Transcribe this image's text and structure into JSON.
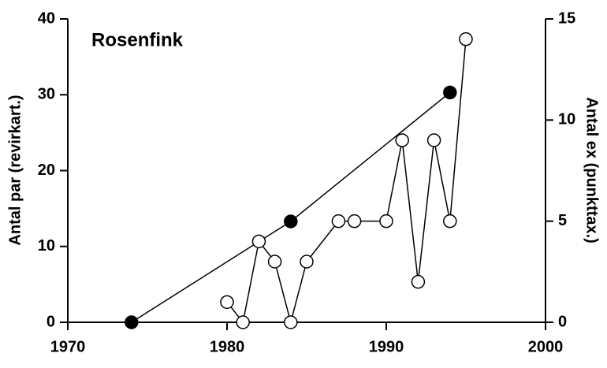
{
  "chart_data": {
    "type": "line",
    "title": "Rosenfink",
    "y_label": "Antal par (revirkart.)",
    "y2_label": "Antal ex (punkttax.)",
    "xlim": [
      1970,
      2000
    ],
    "xticks": [
      1970,
      1980,
      1990,
      2000
    ],
    "ylim": [
      0,
      40
    ],
    "yticks": [
      0,
      10,
      20,
      30,
      40
    ],
    "y2lim": [
      0,
      15
    ],
    "y2ticks": [
      0,
      5,
      10,
      15
    ],
    "series": [
      {
        "color": "#000000",
        "marker_fill": "#000000",
        "axis": "y",
        "x": [
          1974,
          1984,
          1994
        ],
        "values": [
          0,
          13.3,
          30.3
        ]
      },
      {
        "color": "#000000",
        "marker_fill": "#ffffff",
        "axis": "y2",
        "x": [
          1980,
          1981,
          1982,
          1983,
          1984,
          1985,
          1987,
          1988,
          1990,
          1991,
          1992,
          1993,
          1994,
          1995
        ],
        "values": [
          1,
          0,
          4,
          3,
          0,
          3,
          5,
          5,
          5,
          9,
          2,
          9,
          5,
          14
        ]
      }
    ]
  }
}
